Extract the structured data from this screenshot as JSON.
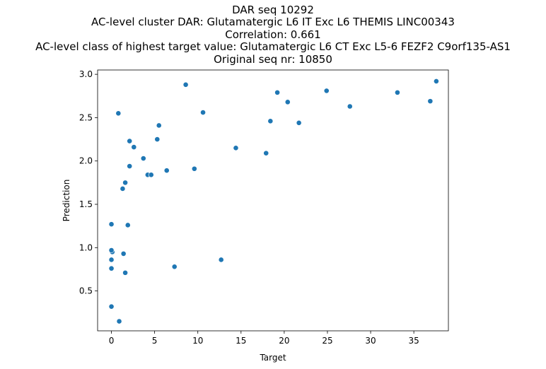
{
  "chart_data": {
    "type": "scatter",
    "title_lines": [
      "DAR seq 10292",
      "AC-level cluster DAR: Glutamatergic L6 IT Exc L6 THEMIS LINC00343",
      "Correlation: 0.661",
      "AC-level class of highest target value: Glutamatergic L6 CT Exc L5-6 FEZF2 C9orf135-AS1",
      "Original seq nr: 10850"
    ],
    "xlabel": "Target",
    "ylabel": "Prediction",
    "xlim": [
      -1.6,
      39.0
    ],
    "ylim": [
      0.04,
      3.05
    ],
    "xticks": [
      0,
      5,
      10,
      15,
      20,
      25,
      30,
      35
    ],
    "xtick_labels": [
      "0",
      "5",
      "10",
      "15",
      "20",
      "25",
      "30",
      "35"
    ],
    "yticks": [
      0.5,
      1.0,
      1.5,
      2.0,
      2.5,
      3.0
    ],
    "ytick_labels": [
      "0.5",
      "1.0",
      "1.5",
      "2.0",
      "2.5",
      "3.0"
    ],
    "grid": false,
    "marker_color": "#1f77b4",
    "points": [
      {
        "x": 0.0,
        "y": 0.32
      },
      {
        "x": 0.9,
        "y": 0.15
      },
      {
        "x": 0.0,
        "y": 0.76
      },
      {
        "x": 0.0,
        "y": 0.86
      },
      {
        "x": 0.1,
        "y": 0.95
      },
      {
        "x": 0.0,
        "y": 0.97
      },
      {
        "x": 0.0,
        "y": 1.27
      },
      {
        "x": 1.4,
        "y": 0.93
      },
      {
        "x": 1.6,
        "y": 0.71
      },
      {
        "x": 1.9,
        "y": 1.26
      },
      {
        "x": 1.3,
        "y": 1.68
      },
      {
        "x": 1.6,
        "y": 1.75
      },
      {
        "x": 2.1,
        "y": 1.94
      },
      {
        "x": 2.1,
        "y": 2.23
      },
      {
        "x": 2.6,
        "y": 2.16
      },
      {
        "x": 0.8,
        "y": 2.55
      },
      {
        "x": 3.7,
        "y": 2.03
      },
      {
        "x": 4.2,
        "y": 1.84
      },
      {
        "x": 4.6,
        "y": 1.84
      },
      {
        "x": 5.3,
        "y": 2.25
      },
      {
        "x": 5.5,
        "y": 2.41
      },
      {
        "x": 6.4,
        "y": 1.89
      },
      {
        "x": 7.3,
        "y": 0.78
      },
      {
        "x": 8.6,
        "y": 2.88
      },
      {
        "x": 9.6,
        "y": 1.91
      },
      {
        "x": 10.6,
        "y": 2.56
      },
      {
        "x": 12.7,
        "y": 0.86
      },
      {
        "x": 14.4,
        "y": 2.15
      },
      {
        "x": 17.9,
        "y": 2.09
      },
      {
        "x": 18.4,
        "y": 2.46
      },
      {
        "x": 19.2,
        "y": 2.79
      },
      {
        "x": 20.4,
        "y": 2.68
      },
      {
        "x": 21.7,
        "y": 2.44
      },
      {
        "x": 24.9,
        "y": 2.81
      },
      {
        "x": 27.6,
        "y": 2.63
      },
      {
        "x": 33.1,
        "y": 2.79
      },
      {
        "x": 36.9,
        "y": 2.69
      },
      {
        "x": 37.6,
        "y": 2.92
      }
    ]
  }
}
